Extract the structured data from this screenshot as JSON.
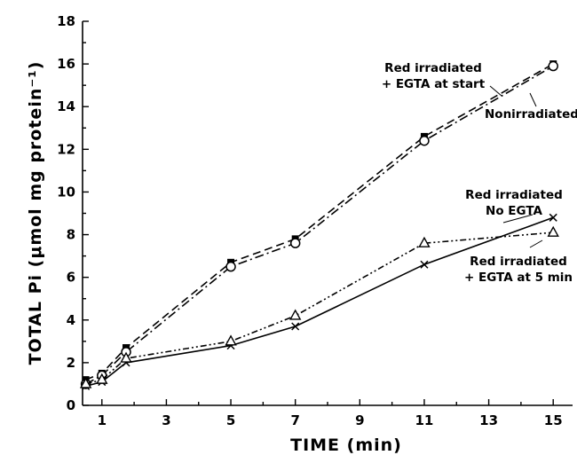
{
  "chart_data": {
    "type": "line",
    "xlabel": "TIME (min)",
    "ylabel": "TOTAL Pi (μmol mg protein⁻¹)",
    "xlim": [
      0.4,
      15.6
    ],
    "ylim": [
      0,
      18
    ],
    "xticks": [
      1,
      3,
      5,
      7,
      9,
      11,
      13,
      15
    ],
    "yticks": [
      0,
      2,
      4,
      6,
      8,
      10,
      12,
      14,
      16,
      18
    ],
    "grid": false,
    "series": [
      {
        "marker": "filled-square",
        "line_style": "dashed",
        "x": [
          0.5,
          1,
          1.75,
          5,
          7,
          11,
          15
        ],
        "y": [
          1.2,
          1.5,
          2.7,
          6.7,
          7.8,
          12.6,
          16.0
        ]
      },
      {
        "marker": "open-circle",
        "line_style": "dash-dot",
        "x": [
          0.5,
          1,
          1.75,
          5,
          7,
          11,
          15
        ],
        "y": [
          1.0,
          1.4,
          2.5,
          6.5,
          7.6,
          12.4,
          15.9
        ]
      },
      {
        "marker": "x",
        "line_style": "solid",
        "x": [
          0.5,
          1,
          1.75,
          5,
          7,
          11,
          15
        ],
        "y": [
          0.9,
          1.1,
          2.0,
          2.8,
          3.7,
          6.6,
          8.8
        ]
      },
      {
        "marker": "open-triangle",
        "line_style": "dash-dot-dot",
        "x": [
          0.5,
          1,
          1.75,
          5,
          7,
          11,
          15
        ],
        "y": [
          1.0,
          1.2,
          2.2,
          3.0,
          4.2,
          7.6,
          8.1
        ]
      }
    ],
    "annotations": [
      {
        "key": "red_start",
        "lines": [
          "Red irradiated",
          "+ EGTA at start"
        ]
      },
      {
        "key": "nonirr",
        "lines": [
          "Nonirradiated"
        ]
      },
      {
        "key": "red_no",
        "lines": [
          "Red irradiated",
          "No EGTA"
        ]
      },
      {
        "key": "red_5",
        "lines": [
          "Red irradiated",
          "+ EGTA at 5 min"
        ]
      }
    ]
  }
}
